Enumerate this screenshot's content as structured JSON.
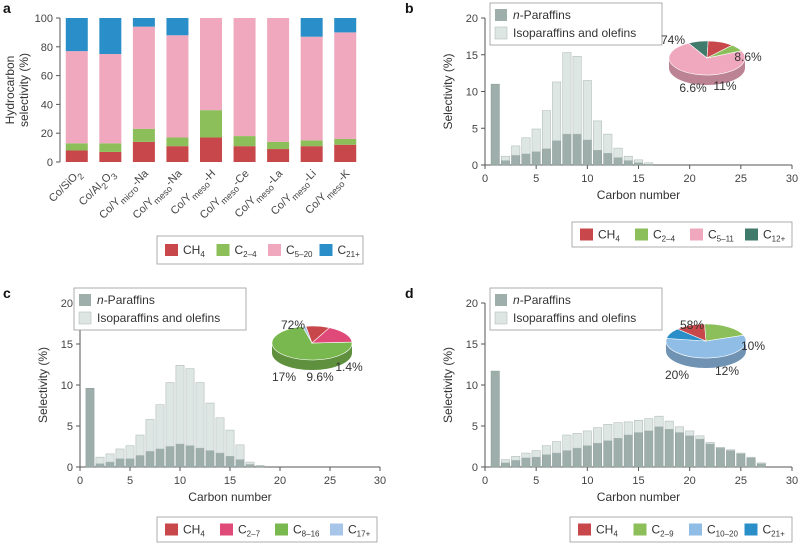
{
  "colors": {
    "ch4": "#c8474a",
    "c24": "#8cbf5a",
    "c520": "#f0a8be",
    "c21": "#2a8fc8",
    "c12": "#3f7a6a",
    "c27": "#e04a78",
    "c816": "#79b84e",
    "c17": "#a7c5e8",
    "c1020": "#8fbde6",
    "nparaffin": "#9eaeaa",
    "isoparaffin": "#dde6e3"
  },
  "chart_data": [
    {
      "panel": "a",
      "type": "bar",
      "stacked": true,
      "ylabel_lines": [
        "Hydrocarbon",
        "selectivity (%)"
      ],
      "ylim": [
        0,
        100
      ],
      "yticks": [
        "0",
        "20",
        "40",
        "60",
        "80",
        "100"
      ],
      "categories": [
        {
          "main": "Co/SiO",
          "sub": "2",
          "suffix": ""
        },
        {
          "main": "Co/Al",
          "sub": "2",
          "mid": "O",
          "sub2": "3",
          "suffix": ""
        },
        {
          "main": "Co/Y",
          "sub": "micro",
          "suffix": "-Na"
        },
        {
          "main": "Co/Y",
          "sub": "meso",
          "suffix": "-Na"
        },
        {
          "main": "Co/Y",
          "sub": "meso",
          "suffix": "-H"
        },
        {
          "main": "Co/Y",
          "sub": "meso",
          "suffix": "-Ce"
        },
        {
          "main": "Co/Y",
          "sub": "meso",
          "suffix": "-La"
        },
        {
          "main": "Co/Y",
          "sub": "meso",
          "suffix": "-Li"
        },
        {
          "main": "Co/Y",
          "sub": "meso",
          "suffix": "-K"
        }
      ],
      "series": [
        {
          "key": "ch4",
          "values": [
            8,
            7,
            14,
            11,
            17,
            11,
            9,
            11,
            12
          ]
        },
        {
          "key": "c24",
          "values": [
            5,
            6,
            9,
            6,
            19,
            7,
            5,
            4,
            4
          ]
        },
        {
          "key": "c520",
          "values": [
            64,
            62,
            71,
            71,
            64,
            82,
            86,
            72,
            74
          ]
        },
        {
          "key": "c21",
          "values": [
            23,
            25,
            6,
            12,
            0,
            0,
            0,
            13,
            10
          ]
        }
      ],
      "legend": [
        {
          "key": "ch4",
          "text": "CH",
          "sub": "4"
        },
        {
          "key": "c24",
          "text": "C",
          "sub": "2–4"
        },
        {
          "key": "c520",
          "text": "C",
          "sub": "5–20"
        },
        {
          "key": "c21",
          "text": "C",
          "sub": "21+"
        }
      ]
    },
    {
      "panel": "b",
      "type": "bar",
      "stacked": true,
      "xlabel": "Carbon number",
      "ylabel": "Selectivity (%)",
      "xlim": [
        0,
        30
      ],
      "ylim": [
        0,
        20
      ],
      "xticks": [
        "0",
        "5",
        "10",
        "15",
        "20",
        "25",
        "30"
      ],
      "yticks": [
        "0",
        "5",
        "10",
        "15",
        "20"
      ],
      "x": [
        1,
        2,
        3,
        4,
        5,
        6,
        7,
        8,
        9,
        10,
        11,
        12,
        13,
        14,
        15,
        16
      ],
      "n_paraffins": [
        11,
        0.6,
        1.3,
        1.5,
        1.8,
        2.2,
        3.3,
        4.2,
        4.2,
        3.4,
        2.0,
        1.6,
        1.0,
        0.6,
        0.3,
        0.1
      ],
      "iso_olefins": [
        0,
        0.6,
        1.3,
        2.2,
        3.1,
        5.2,
        8.0,
        11.1,
        10.6,
        8.1,
        4.0,
        2.6,
        1.3,
        0.6,
        0.4,
        0.2
      ],
      "legend": [
        "n-Paraffins",
        "Isoparaffins and olefins"
      ],
      "pie": {
        "slices": [
          {
            "key": "c520",
            "value": 74,
            "label": "74%"
          },
          {
            "key": "c12",
            "value": 8.6,
            "label": "8.6%"
          },
          {
            "key": "ch4",
            "value": 11,
            "label": "11%"
          },
          {
            "key": "c24",
            "value": 6.6,
            "label": "6.6%"
          }
        ]
      },
      "bottom_legend": [
        {
          "key": "ch4",
          "text": "CH",
          "sub": "4"
        },
        {
          "key": "c24",
          "text": "C",
          "sub": "2–4"
        },
        {
          "key": "c520",
          "text": "C",
          "sub": "5–11"
        },
        {
          "key": "c12",
          "text": "C",
          "sub": "12+"
        }
      ]
    },
    {
      "panel": "c",
      "type": "bar",
      "stacked": true,
      "xlabel": "Carbon number",
      "ylabel": "Selectivity (%)",
      "xlim": [
        0,
        30
      ],
      "ylim": [
        0,
        20
      ],
      "xticks": [
        "0",
        "5",
        "10",
        "15",
        "20",
        "25",
        "30"
      ],
      "yticks": [
        "0",
        "5",
        "10",
        "15",
        "20"
      ],
      "x": [
        1,
        2,
        3,
        4,
        5,
        6,
        7,
        8,
        9,
        10,
        11,
        12,
        13,
        14,
        15,
        16,
        17,
        18
      ],
      "n_paraffins": [
        9.6,
        0.4,
        0.6,
        1.0,
        1.0,
        1.4,
        1.9,
        2.2,
        2.5,
        2.8,
        2.6,
        2.3,
        2.0,
        1.7,
        1.3,
        0.9,
        0.3,
        0.1
      ],
      "iso_olefins": [
        0,
        0.8,
        1.0,
        1.2,
        1.6,
        2.5,
        3.9,
        5.4,
        7.8,
        9.6,
        9.4,
        8.0,
        5.8,
        4.3,
        3.2,
        1.8,
        0.3,
        0.1
      ],
      "legend": [
        "n-Paraffins",
        "Isoparaffins and olefins"
      ],
      "pie": {
        "slices": [
          {
            "key": "c816",
            "value": 72,
            "label": "72%"
          },
          {
            "key": "c17",
            "value": 1.4,
            "label": "1.4%"
          },
          {
            "key": "ch4",
            "value": 9.6,
            "label": "9.6%"
          },
          {
            "key": "c27",
            "value": 17,
            "label": "17%"
          }
        ]
      },
      "bottom_legend": [
        {
          "key": "ch4",
          "text": "CH",
          "sub": "4"
        },
        {
          "key": "c27",
          "text": "C",
          "sub": "2–7"
        },
        {
          "key": "c816",
          "text": "C",
          "sub": "8–16"
        },
        {
          "key": "c17",
          "text": "C",
          "sub": "17+"
        }
      ]
    },
    {
      "panel": "d",
      "type": "bar",
      "stacked": true,
      "xlabel": "Carbon number",
      "ylabel": "Selectivity (%)",
      "xlim": [
        0,
        30
      ],
      "ylim": [
        0,
        20
      ],
      "xticks": [
        "0",
        "5",
        "10",
        "15",
        "20",
        "25",
        "30"
      ],
      "yticks": [
        "0",
        "5",
        "10",
        "15",
        "20"
      ],
      "x": [
        1,
        2,
        3,
        4,
        5,
        6,
        7,
        8,
        9,
        10,
        11,
        12,
        13,
        14,
        15,
        16,
        17,
        18,
        19,
        20,
        21,
        22,
        23,
        24,
        25,
        26,
        27
      ],
      "n_paraffins": [
        11.7,
        0.5,
        0.8,
        1.1,
        1.2,
        1.5,
        1.7,
        2.0,
        2.3,
        2.6,
        2.9,
        3.2,
        3.5,
        3.9,
        4.2,
        4.4,
        4.9,
        4.6,
        4.2,
        3.8,
        3.4,
        2.8,
        2.3,
        2.0,
        1.6,
        1.1,
        0.4
      ],
      "iso_olefins": [
        0,
        0.4,
        0.5,
        0.6,
        0.8,
        1.1,
        1.4,
        1.9,
        1.8,
        1.8,
        1.9,
        2.0,
        1.9,
        1.6,
        1.5,
        1.5,
        1.3,
        1.0,
        0.7,
        0.6,
        0.4,
        0.2,
        0.1,
        0.1,
        0.1,
        0.1,
        0.1
      ],
      "legend": [
        "n-Paraffins",
        "Isoparaffins and olefins"
      ],
      "pie": {
        "slices": [
          {
            "key": "c1020",
            "value": 58,
            "label": "58%"
          },
          {
            "key": "c21",
            "value": 10,
            "label": "10%"
          },
          {
            "key": "ch4",
            "value": 12,
            "label": "12%"
          },
          {
            "key": "c24",
            "value": 20,
            "label": "20%"
          }
        ]
      },
      "bottom_legend": [
        {
          "key": "ch4",
          "text": "CH",
          "sub": "4"
        },
        {
          "key": "c24",
          "text": "C",
          "sub": "2–9"
        },
        {
          "key": "c1020",
          "text": "C",
          "sub": "10–20"
        },
        {
          "key": "c21",
          "text": "C",
          "sub": "21+"
        }
      ]
    }
  ]
}
